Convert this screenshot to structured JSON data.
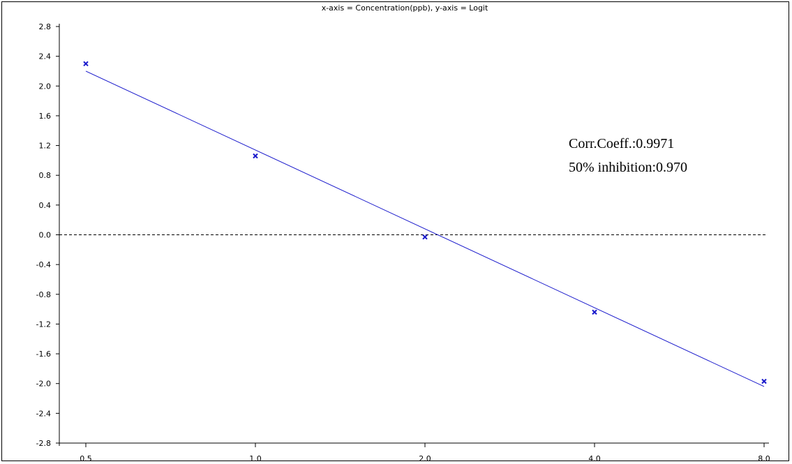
{
  "chart_data": {
    "type": "scatter",
    "title": "x-axis = Concentration(ppb), y-axis = Logit",
    "x_scale": "log2",
    "x_ticks": [
      "0.5",
      "1.0",
      "2.0",
      "4.0",
      "8.0"
    ],
    "y_ticks": [
      "2.8",
      "2.4",
      "2.0",
      "1.6",
      "1.2",
      "0.8",
      "0.4",
      "0.0",
      "-0.4",
      "-0.8",
      "-1.2",
      "-1.6",
      "-2.0",
      "-2.4",
      "-2.8"
    ],
    "xlim": [
      0.5,
      8.0
    ],
    "ylim": [
      -2.8,
      2.8
    ],
    "points": {
      "x": [
        0.5,
        1.0,
        2.0,
        4.0,
        8.0
      ],
      "y": [
        2.3,
        1.06,
        -0.03,
        -1.04,
        -1.97
      ]
    },
    "fit_line": {
      "x": [
        0.5,
        8.0
      ],
      "y": [
        2.2,
        -2.04
      ]
    },
    "reference_line": {
      "y": 0.0,
      "style": "dashed"
    },
    "annotations": [
      "Corr.Coeff.:0.9971",
      "50% inhibition:0.970"
    ],
    "colors": {
      "series": "#1a1acc",
      "axis": "#000000"
    },
    "grid": false
  }
}
